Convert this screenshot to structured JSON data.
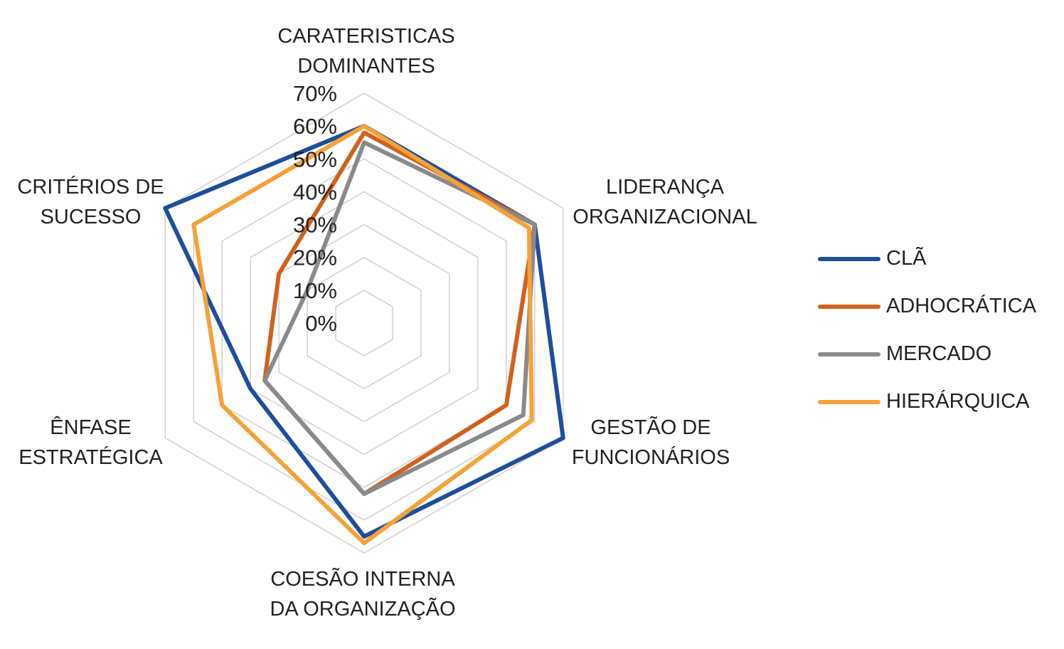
{
  "chart_data": {
    "type": "radar",
    "axes": [
      "CARATERISTICAS\nDOMINANTES",
      "LIDERANÇA\nORGANIZACIONAL",
      "GESTÃO DE\nFUNCIONÁRIOS",
      "COESÃO INTERNA\nDA ORGANIZAÇÃO",
      "ÊNFASE\nESTRATÉGICA",
      "CRITÉRIOS DE\nSUCESSO"
    ],
    "r_ticks": [
      "0%",
      "10%",
      "20%",
      "30%",
      "40%",
      "50%",
      "60%",
      "70%"
    ],
    "r_max": 70,
    "grid": true,
    "legend_position": "right",
    "series": [
      {
        "name": "CLÃ",
        "color": "#1f4e9c",
        "values": [
          60,
          60,
          70,
          65,
          40,
          70
        ]
      },
      {
        "name": "ADHOCRÁTICA",
        "color": "#d0621f",
        "values": [
          58,
          60,
          50,
          52,
          35,
          30
        ]
      },
      {
        "name": "MERCADO",
        "color": "#8a8a8a",
        "values": [
          55,
          60,
          56,
          52,
          35,
          20
        ]
      },
      {
        "name": "HIERÁRQUICA",
        "color": "#f4a23a",
        "values": [
          60,
          58,
          59,
          67,
          50,
          60
        ]
      }
    ]
  }
}
